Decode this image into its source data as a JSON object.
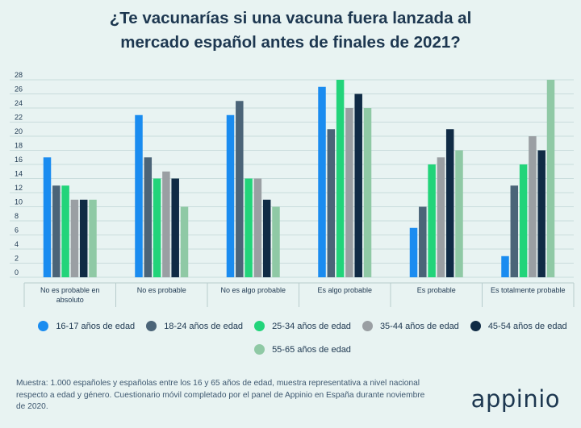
{
  "title": {
    "line1": "¿Te vacunarías si una vacuna fuera lanzada al",
    "line2": "mercado español antes de finales de 2021?"
  },
  "chart_data": {
    "type": "bar",
    "categories": [
      [
        "No es probable en",
        "absoluto"
      ],
      [
        "No es probable"
      ],
      [
        "No es algo probable"
      ],
      [
        "Es algo probable"
      ],
      [
        "Es probable"
      ],
      [
        "Es totalmente probable"
      ]
    ],
    "ylim": [
      0,
      28
    ],
    "yticks": [
      0,
      2,
      4,
      6,
      8,
      10,
      12,
      14,
      16,
      18,
      20,
      22,
      24,
      26,
      28
    ],
    "grid": true,
    "series": [
      {
        "name": "16-17 años de edad",
        "color": "#1a8cf0",
        "values": [
          17,
          23,
          23,
          27,
          7,
          3
        ]
      },
      {
        "name": "18-24 años de edad",
        "color": "#4b6478",
        "values": [
          13,
          17,
          25,
          21,
          10,
          13
        ]
      },
      {
        "name": "25-34 años de edad",
        "color": "#22d47a",
        "values": [
          13,
          14,
          14,
          28,
          16,
          16
        ]
      },
      {
        "name": "35-44 años de edad",
        "color": "#9a9fa3",
        "values": [
          11,
          15,
          14,
          24,
          17,
          20
        ]
      },
      {
        "name": "45-54 años de edad",
        "color": "#102b45",
        "values": [
          11,
          14,
          11,
          26,
          21,
          18
        ]
      },
      {
        "name": "55-65 años de edad",
        "color": "#8fc9a5",
        "values": [
          11,
          10,
          10,
          24,
          18,
          28
        ]
      }
    ],
    "legend_position": "bottom"
  },
  "footnote": "Muestra: 1.000 españoles y españolas entre los 16 y 65 años de edad, muestra representativa a nivel nacional respecto a edad y género. Cuestionario móvil completado por el panel de Appinio en España durante noviembre de 2020.",
  "logo": "appinio"
}
